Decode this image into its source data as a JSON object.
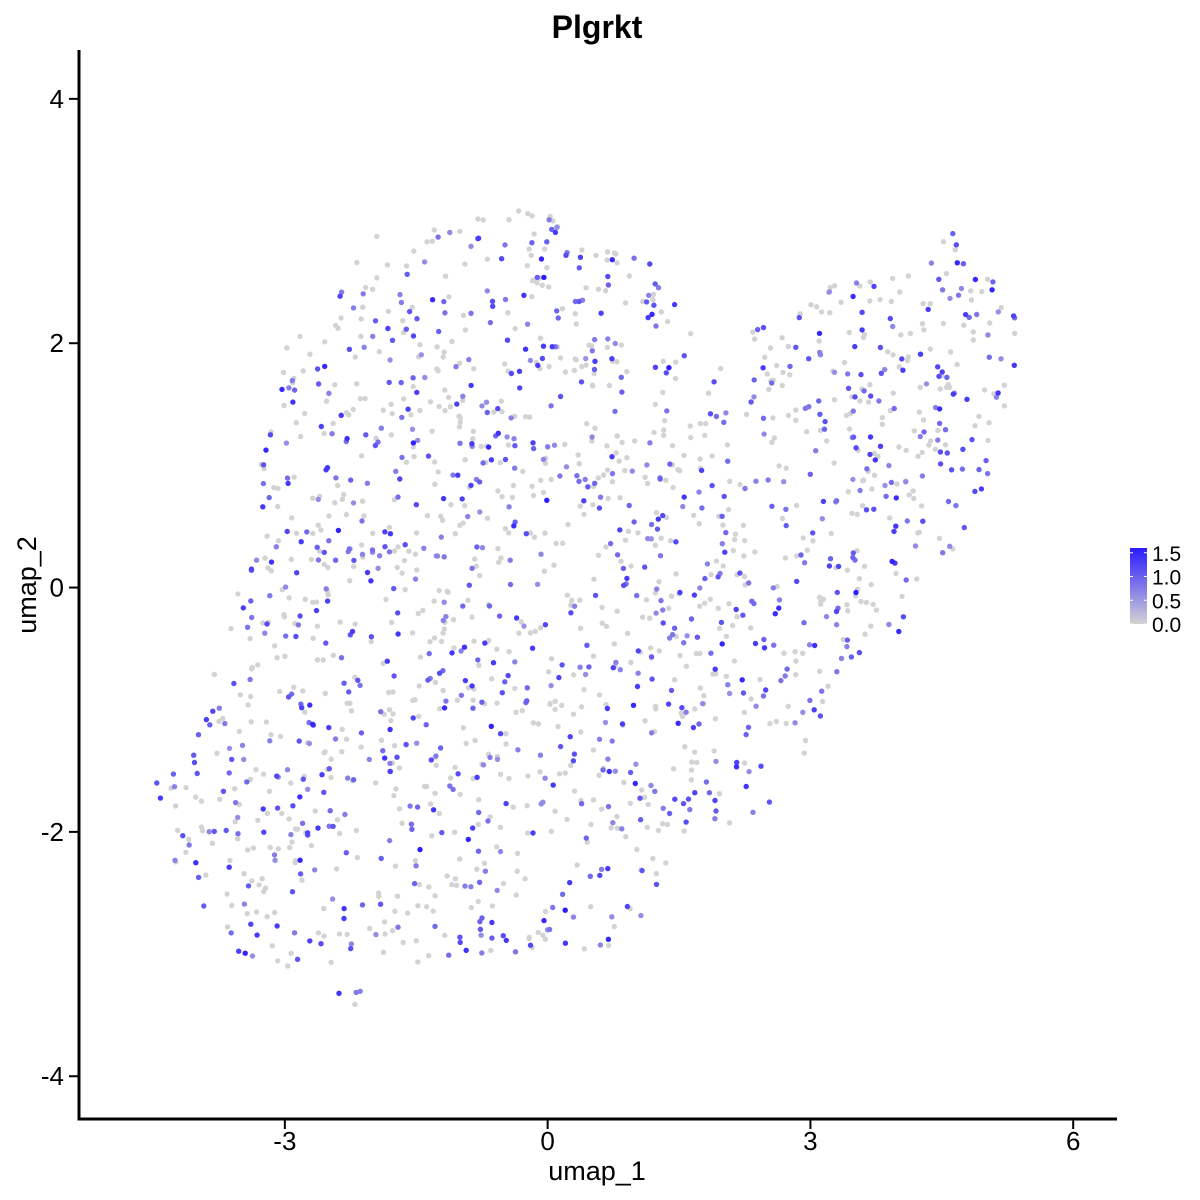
{
  "chart_data": {
    "type": "scatter",
    "title": "Plgrkt",
    "xlabel": "umap_1",
    "ylabel": "umap_2",
    "xlim": [
      -5.35,
      6.5
    ],
    "ylim": [
      -4.35,
      4.4
    ],
    "xticks": [
      -3,
      0,
      3,
      6
    ],
    "yticks": [
      -4,
      -2,
      0,
      2,
      4
    ],
    "xtick_labels": [
      "-3",
      "0",
      "3",
      "6"
    ],
    "ytick_labels": [
      "-4",
      "-2",
      "0",
      "2",
      "4"
    ],
    "grid": false,
    "legend": {
      "placement": "right",
      "scale_min": 0.0,
      "scale_max": 1.6,
      "tick_values": [
        0.0,
        0.5,
        1.0,
        1.5
      ],
      "tick_labels": [
        "0.0",
        "0.5",
        "1.0",
        "1.5"
      ],
      "low_color": "#d3d3d3",
      "high_color": "#2b1bff"
    },
    "point_count": 1800,
    "region_outline": [
      [
        -4.7,
        -1.4
      ],
      [
        -4.2,
        -1.5
      ],
      [
        -3.9,
        -1.0
      ],
      [
        -3.6,
        0.0
      ],
      [
        -3.3,
        1.0
      ],
      [
        -3.0,
        2.0
      ],
      [
        -2.5,
        2.3
      ],
      [
        -2.0,
        2.9
      ],
      [
        -1.0,
        3.05
      ],
      [
        0.0,
        3.1
      ],
      [
        0.3,
        2.8
      ],
      [
        1.2,
        2.7
      ],
      [
        1.8,
        2.0
      ],
      [
        2.5,
        2.2
      ],
      [
        3.5,
        2.6
      ],
      [
        4.2,
        2.6
      ],
      [
        4.5,
        3.05
      ],
      [
        5.3,
        2.4
      ],
      [
        5.4,
        2.0
      ],
      [
        5.0,
        0.8
      ],
      [
        4.2,
        -0.3
      ],
      [
        3.5,
        -0.6
      ],
      [
        3.0,
        -1.3
      ],
      [
        2.5,
        -1.8
      ],
      [
        1.5,
        -2.2
      ],
      [
        1.0,
        -2.9
      ],
      [
        0.0,
        -3.0
      ],
      [
        -1.0,
        -3.0
      ],
      [
        -2.0,
        -3.2
      ],
      [
        -2.2,
        -3.5
      ],
      [
        -3.0,
        -3.1
      ],
      [
        -3.5,
        -3.0
      ],
      [
        -4.0,
        -2.6
      ],
      [
        -4.3,
        -2.3
      ],
      [
        -4.4,
        -1.8
      ]
    ]
  }
}
